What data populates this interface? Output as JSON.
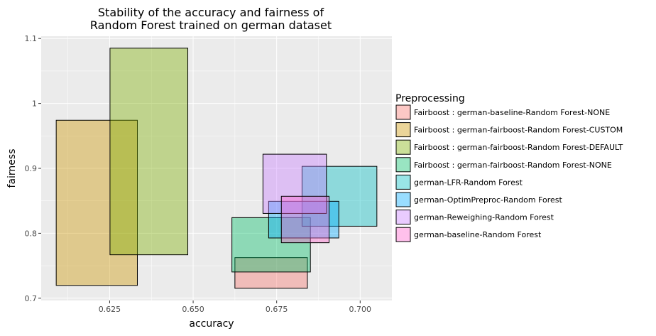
{
  "chart_data": {
    "type": "rect",
    "title": [
      "Stability of the accuracy and fairness of",
      "Random Forest trained on german dataset"
    ],
    "xlabel": "accuracy",
    "ylabel": "fairness",
    "xlim": [
      0.6045,
      0.7095
    ],
    "ylim": [
      0.6965,
      1.1035
    ],
    "x_ticks": [
      0.625,
      0.65,
      0.675,
      0.7
    ],
    "x_tick_labels": [
      "0.625",
      "0.650",
      "0.675",
      "0.700"
    ],
    "y_ticks": [
      0.7,
      0.8,
      0.9,
      1.0,
      1.1
    ],
    "y_tick_labels": [
      "0.7",
      "0.8",
      "0.9",
      "1",
      "1.1"
    ],
    "grid": true,
    "legend": {
      "title": "Preprocessing",
      "position": "right"
    },
    "series": [
      {
        "name": "Fairboost : german-baseline-Random Forest-NONE",
        "color": "#f8766d",
        "xmin": 0.6625,
        "xmax": 0.6842,
        "ymin": 0.7153,
        "ymax": 0.7625
      },
      {
        "name": "Fairboost : german-fairboost-Random Forest-CUSTOM",
        "color": "#cd9600",
        "xmin": 0.609,
        "xmax": 0.6333,
        "ymin": 0.7197,
        "ymax": 0.9741
      },
      {
        "name": "Fairboost : german-fairboost-Random Forest-DEFAULT",
        "color": "#7cae00",
        "xmin": 0.6251,
        "xmax": 0.6484,
        "ymin": 0.7669,
        "ymax": 1.0851
      },
      {
        "name": "Fairboost : german-fairboost-Random Forest-NONE",
        "color": "#00be67",
        "xmin": 0.6616,
        "xmax": 0.6851,
        "ymin": 0.7404,
        "ymax": 0.8241
      },
      {
        "name": "german-LFR-Random Forest",
        "color": "#00bfc4",
        "xmin": 0.6826,
        "xmax": 0.705,
        "ymin": 0.8109,
        "ymax": 0.9031
      },
      {
        "name": "german-OptimPreproc-Random Forest",
        "color": "#00a9ff",
        "xmin": 0.6726,
        "xmax": 0.6936,
        "ymin": 0.7928,
        "ymax": 0.8493
      },
      {
        "name": "german-Reweighing-Random Forest",
        "color": "#c77cff",
        "xmin": 0.6709,
        "xmax": 0.6899,
        "ymin": 0.8306,
        "ymax": 0.9218
      },
      {
        "name": "german-baseline-Random Forest",
        "color": "#ff61cc",
        "xmin": 0.6764,
        "xmax": 0.6907,
        "ymin": 0.7855,
        "ymax": 0.857
      }
    ]
  }
}
